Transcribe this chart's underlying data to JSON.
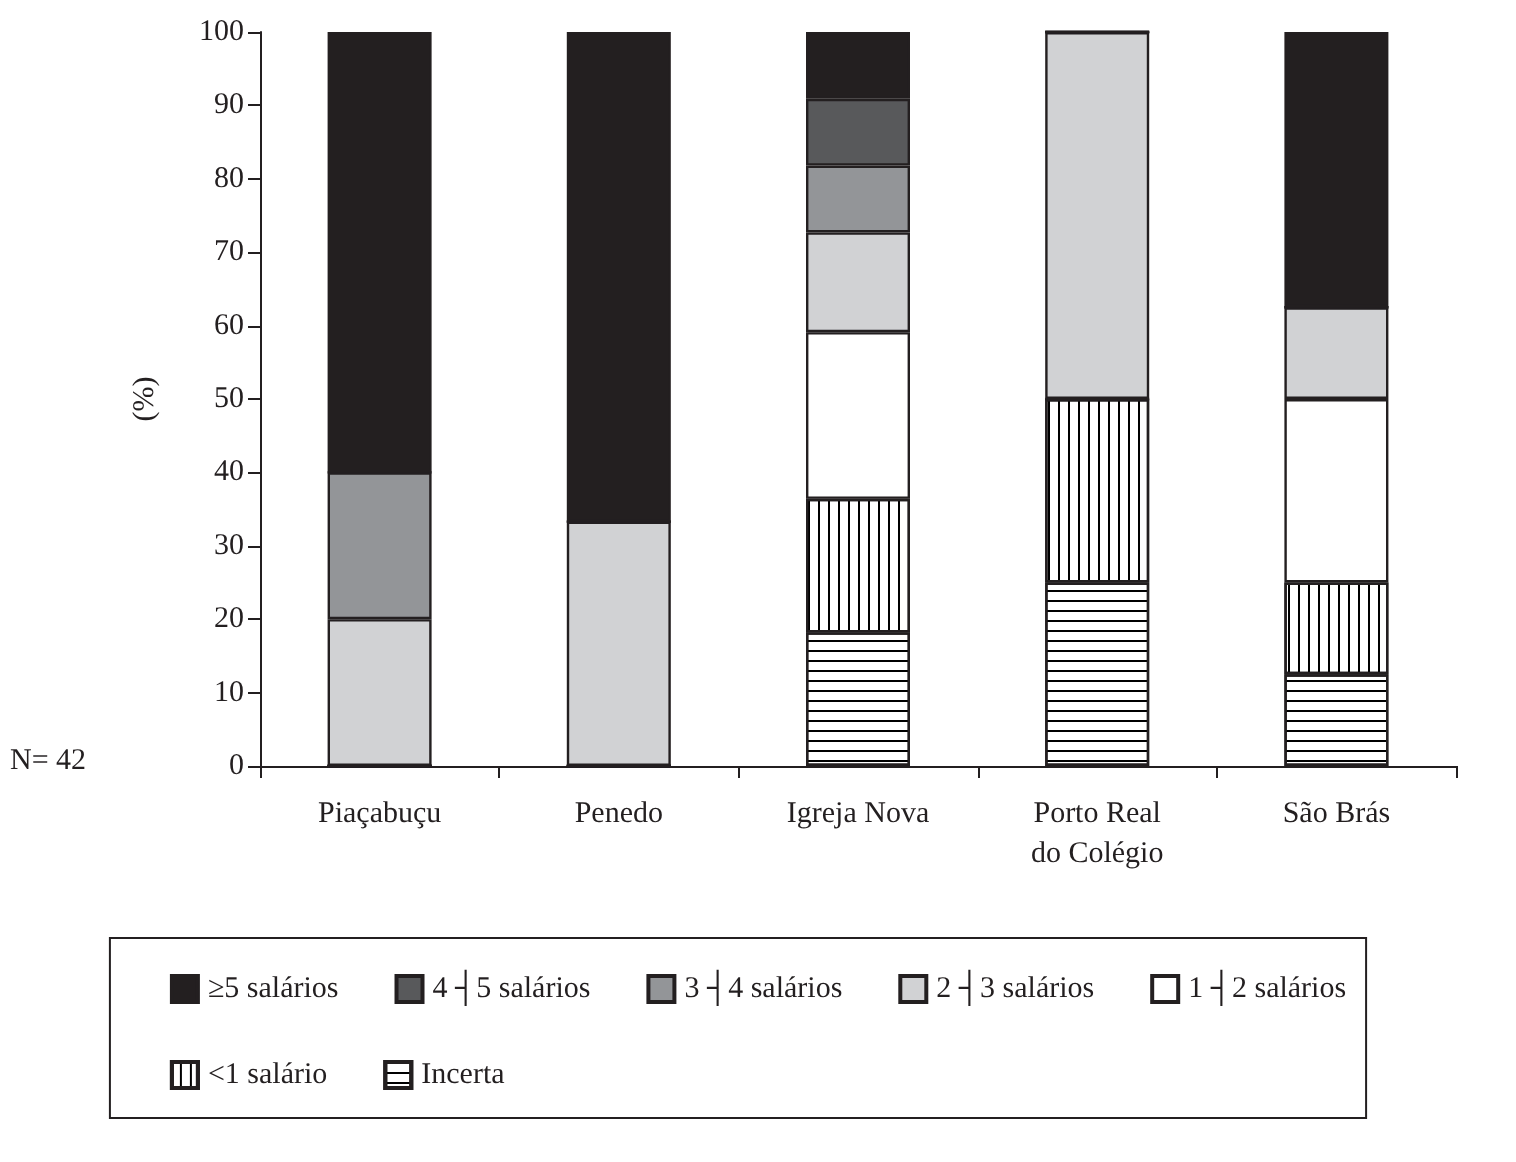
{
  "chart_data": {
    "type": "bar",
    "stacked": true,
    "ylabel": "(%)",
    "categories": [
      "Piaçabuçu",
      "Penedo",
      "Igreja Nova",
      "Porto Real\ndo Colégio",
      "São Brás"
    ],
    "series": [
      {
        "name": "Incerta",
        "color": "#ffffff",
        "values": [
          0,
          0,
          18.2,
          25,
          12.5
        ]
      },
      {
        "name": "<1 salário",
        "color": "#ffffff",
        "values": [
          0,
          0,
          18.2,
          25,
          12.5
        ]
      },
      {
        "name": "1 ┤2 salários",
        "color": "#ffffff",
        "values": [
          0,
          0,
          22.7,
          0,
          25
        ]
      },
      {
        "name": "2 ┤3 salários",
        "color": "#d1d2d4",
        "values": [
          20,
          33.3,
          13.6,
          50,
          12.5
        ]
      },
      {
        "name": "3 ┤4 salários",
        "color": "#939598",
        "values": [
          20,
          0,
          9.1,
          0,
          0
        ]
      },
      {
        "name": "4 ┤5 salários",
        "color": "#58595b",
        "values": [
          0,
          0,
          9.1,
          0,
          0
        ]
      },
      {
        "name": "≥5 salários",
        "color": "#231f20",
        "values": [
          60,
          66.7,
          9.1,
          0,
          37.5
        ]
      }
    ],
    "ylim": [
      0,
      100
    ],
    "yticks": [
      0,
      10,
      20,
      30,
      40,
      50,
      60,
      70,
      80,
      90,
      100
    ],
    "grid": false,
    "legend": "bottom",
    "annotations": [
      "N= 42"
    ]
  }
}
